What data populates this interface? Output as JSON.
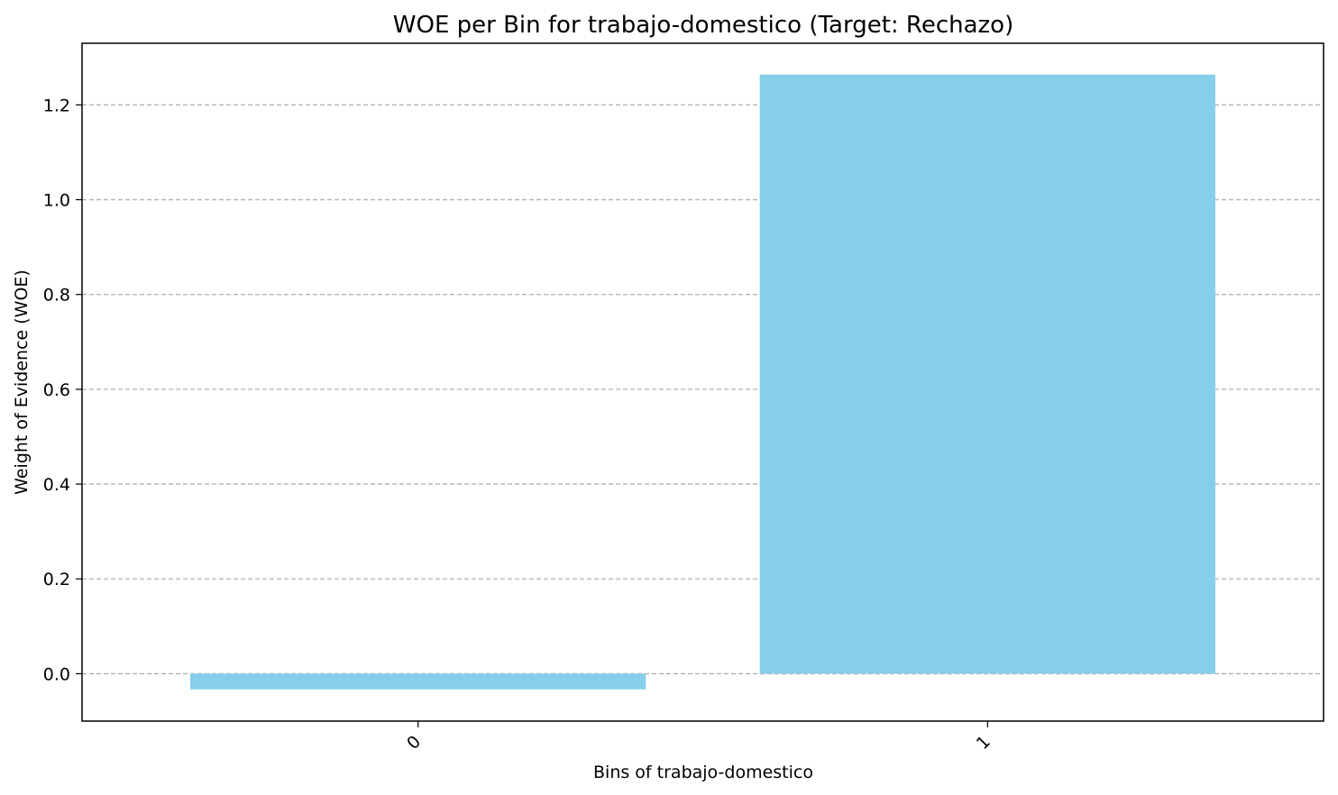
{
  "chart_data": {
    "type": "bar",
    "title": "WOE per Bin for trabajo-domestico (Target: Rechazo)",
    "xlabel": "Bins of trabajo-domestico",
    "ylabel": "Weight of Evidence (WOE)",
    "categories": [
      "0",
      "1"
    ],
    "values": [
      -0.033,
      1.264
    ],
    "ylim": [
      -0.1,
      1.33
    ],
    "yticks": [
      0.0,
      0.2,
      0.4,
      0.6,
      0.8,
      1.0,
      1.2
    ],
    "ytick_labels": [
      "0.0",
      "0.2",
      "0.4",
      "0.6",
      "0.8",
      "1.0",
      "1.2"
    ],
    "x_tick_rotation": 45,
    "grid": {
      "axis": "y",
      "style": "dashed",
      "color": "#b0b0b0"
    },
    "bar_color": "#87ceeb",
    "legend": null
  }
}
